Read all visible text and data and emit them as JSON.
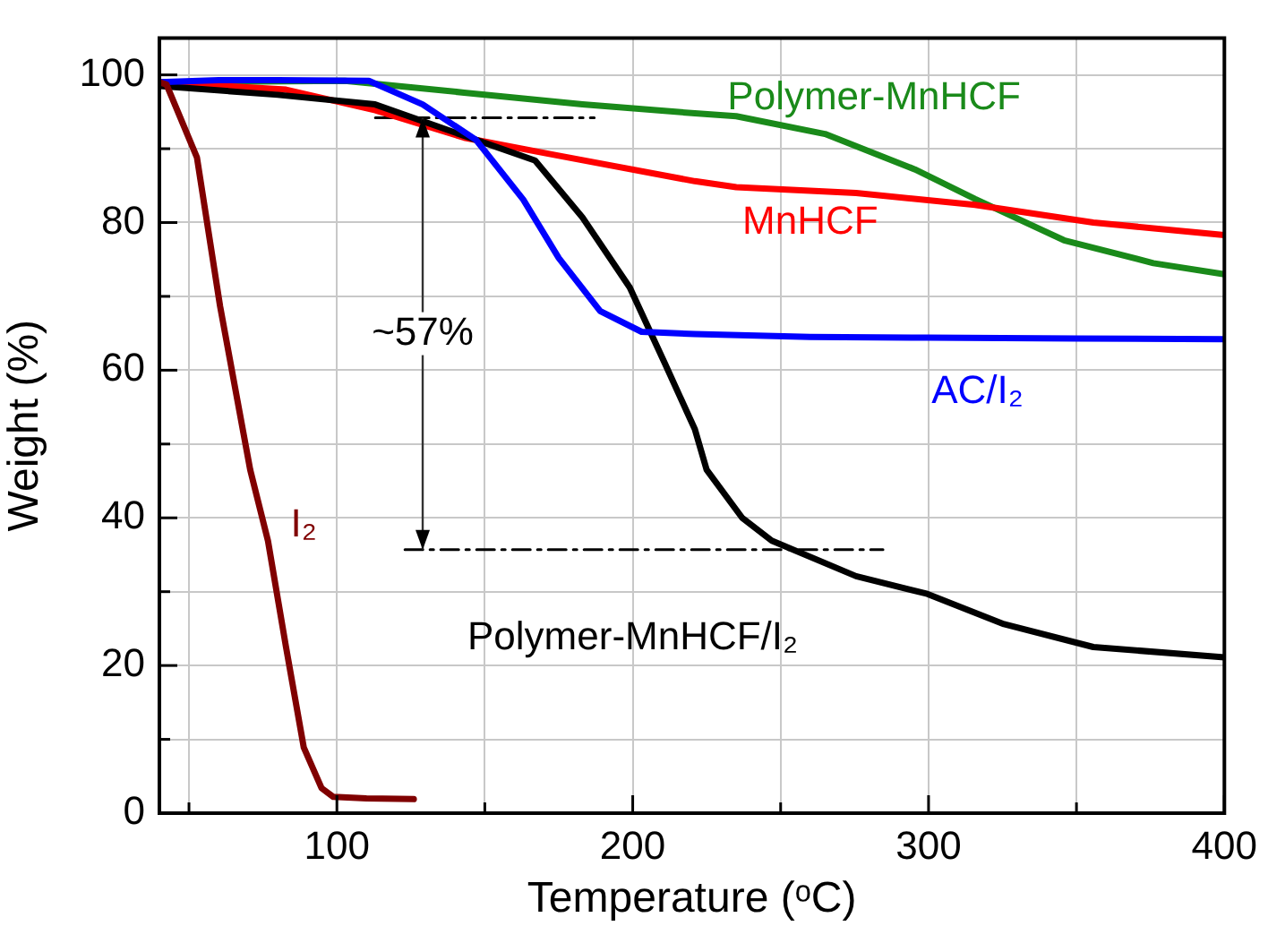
{
  "chart_data": {
    "type": "line",
    "xlabel": "Temperature (ᵒC)",
    "ylabel": "Weight (%)",
    "xlim": [
      40,
      400
    ],
    "xticks": [
      {
        "value": 50,
        "label": null
      },
      100,
      {
        "value": 150,
        "label": null
      },
      200,
      {
        "value": 250,
        "label": null
      },
      300,
      {
        "value": 350,
        "label": null
      },
      400
    ],
    "ylim": [
      0,
      105
    ],
    "yticks": [
      0,
      {
        "value": 10,
        "label": null
      },
      20,
      {
        "value": 30,
        "label": null
      },
      40,
      {
        "value": 50,
        "label": null
      },
      60,
      {
        "value": 70,
        "label": null
      },
      80,
      {
        "value": 90,
        "label": null
      },
      100
    ],
    "grid": true,
    "legend": false,
    "marker": "none",
    "series": [
      {
        "name": "I₂",
        "color": "#800000",
        "x": [
          40,
          42.4,
          52.7,
          60.5,
          70.7,
          76.7,
          82.8,
          88.8,
          94.8,
          98.8,
          110,
          126
        ],
        "values": [
          99,
          98.7,
          88.8,
          68.7,
          46.5,
          36.9,
          22.5,
          8.9,
          3.4,
          2.2,
          2,
          1.9
        ]
      },
      {
        "name": "AC/I₂",
        "color": "#0000ff",
        "x": [
          40,
          60,
          80,
          110.8,
          129,
          147,
          163,
          175,
          189,
          203,
          221,
          260,
          300,
          350,
          400
        ],
        "values": [
          99,
          99.3,
          99.3,
          99.2,
          96,
          91.2,
          83.1,
          75.2,
          68,
          65.2,
          64.9,
          64.5,
          64.4,
          64.3,
          64.2
        ]
      },
      {
        "name": "Polymer-MnHCF/I₂",
        "color": "#000000",
        "x": [
          40,
          80,
          112.9,
          147,
          167,
          183,
          199,
          211,
          221,
          225,
          237,
          247,
          275.5,
          299.6,
          325.5,
          355.7,
          400
        ],
        "values": [
          98.5,
          97.3,
          96,
          91.2,
          88.4,
          80.7,
          71.2,
          60.8,
          52,
          46.5,
          40,
          36.9,
          32.1,
          29.7,
          25.6,
          22.5,
          21.1
        ]
      },
      {
        "name": "MnHCF",
        "color": "#ff0000",
        "x": [
          40,
          82.8,
          113,
          143,
          173,
          221,
          235,
          275.5,
          315.7,
          355.7,
          400
        ],
        "values": [
          99,
          98,
          95.2,
          91.5,
          89.2,
          85.6,
          84.8,
          84,
          82.4,
          80,
          78.3
        ]
      },
      {
        "name": "Polymer-MnHCF",
        "color": "#1a8a1a",
        "x": [
          40,
          102.7,
          143,
          183,
          221,
          235,
          265,
          295.4,
          315.7,
          345.8,
          376,
          400
        ],
        "values": [
          99,
          99.2,
          97.6,
          96,
          94.8,
          94.4,
          92,
          87.2,
          83.2,
          77.6,
          74.5,
          73
        ]
      },
      {
        "color": "#000000",
        "line_style": "dashed",
        "x": [
          113,
          187
        ],
        "values": [
          94.2,
          94.2
        ]
      },
      {
        "color": "#000000",
        "line_style": "dashed",
        "x": [
          123,
          284.6
        ],
        "values": [
          35.7,
          35.7
        ]
      }
    ],
    "annotations": [
      {
        "text": "~57%",
        "x": 129,
        "y": 94.2
      }
    ]
  }
}
